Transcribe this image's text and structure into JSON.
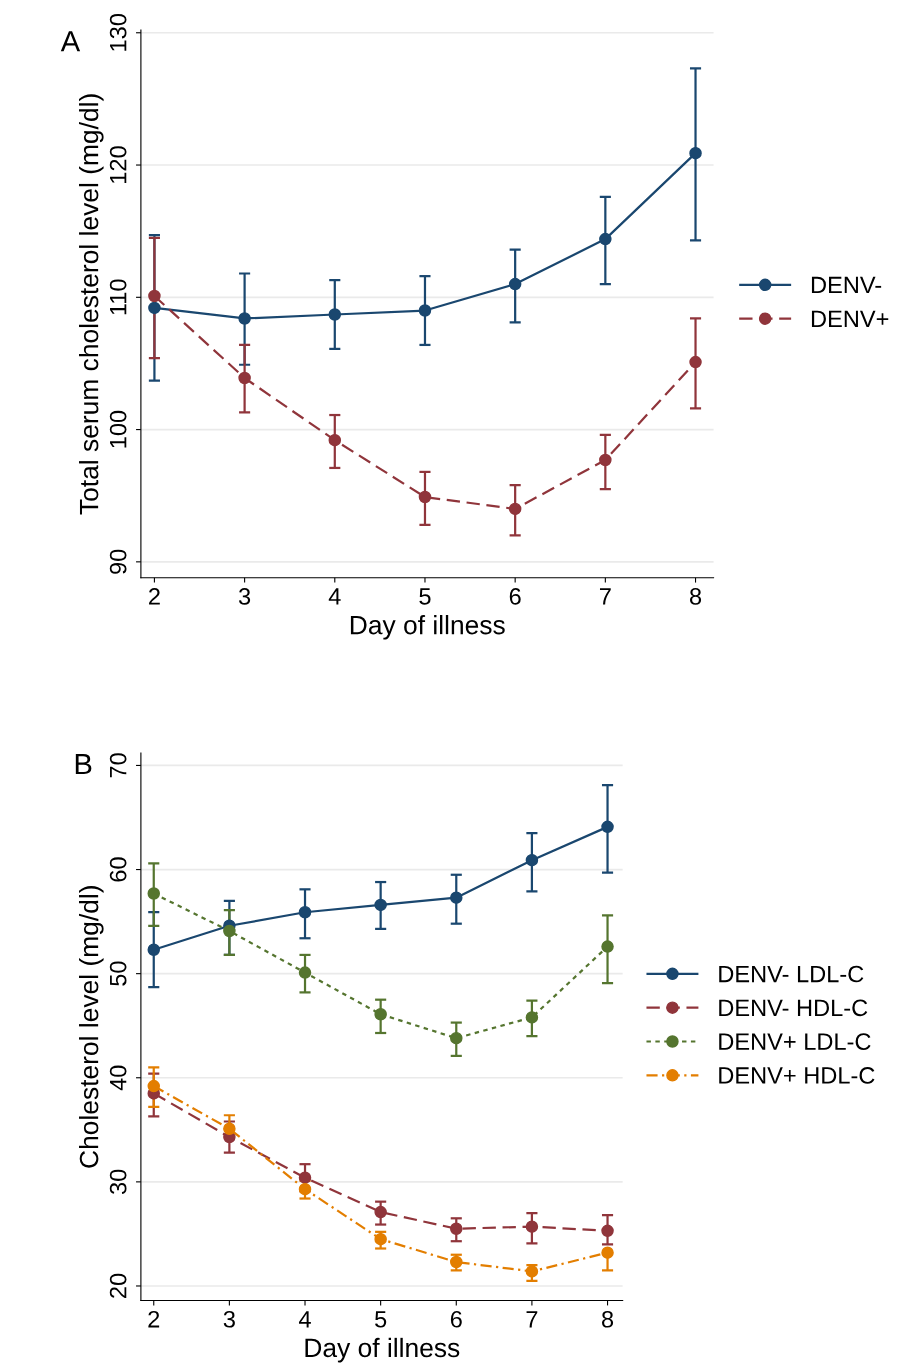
{
  "chart_data": [
    {
      "type": "line",
      "title": "A",
      "xlabel": "Day of illness",
      "ylabel": "Total serum cholesterol level (mg/dl)",
      "x": [
        2,
        3,
        4,
        5,
        6,
        7,
        8
      ],
      "xlim": [
        1.85,
        8.2
      ],
      "xticks": [
        2,
        3,
        4,
        5,
        6,
        7,
        8
      ],
      "ylim": [
        88.8,
        130.2
      ],
      "yticks": [
        90,
        100,
        110,
        120,
        130
      ],
      "grid": "y",
      "legend": "right",
      "marker": "circle",
      "series": [
        {
          "name": "DENV-",
          "color": "#1a476f",
          "line_style": "solid",
          "values": [
            109.2,
            108.4,
            108.7,
            109.0,
            111.0,
            114.4,
            120.9
          ],
          "errors": [
            [
              103.7,
              114.7
            ],
            [
              104.9,
              111.8
            ],
            [
              106.1,
              111.3
            ],
            [
              106.4,
              111.6
            ],
            [
              108.1,
              113.6
            ],
            [
              111.0,
              117.6
            ],
            [
              114.3,
              127.3
            ]
          ]
        },
        {
          "name": "DENV+",
          "color": "#90353b",
          "line_style": "dashed",
          "values": [
            110.1,
            103.9,
            99.2,
            94.9,
            94.0,
            97.7,
            105.1
          ],
          "errors": [
            [
              105.4,
              114.5
            ],
            [
              101.3,
              106.4
            ],
            [
              97.1,
              101.1
            ],
            [
              92.8,
              96.8
            ],
            [
              92.0,
              95.8
            ],
            [
              95.5,
              99.6
            ],
            [
              101.6,
              108.4
            ]
          ]
        }
      ]
    },
    {
      "type": "line",
      "title": "B",
      "xlabel": "Day of illness",
      "ylabel": "Cholesterol level (mg/dl)",
      "x": [
        2,
        3,
        4,
        5,
        6,
        7,
        8
      ],
      "xlim": [
        1.83,
        8.2
      ],
      "xticks": [
        2,
        3,
        4,
        5,
        6,
        7,
        8
      ],
      "ylim": [
        18.6,
        71.2
      ],
      "yticks": [
        20,
        30,
        40,
        50,
        60,
        70
      ],
      "grid": "y",
      "legend": "right",
      "marker": "circle",
      "series": [
        {
          "name": "DENV- LDL-C",
          "color": "#1a476f",
          "line_style": "solid",
          "values": [
            52.3,
            54.6,
            55.9,
            56.6,
            57.3,
            60.9,
            64.1
          ],
          "errors": [
            [
              48.7,
              55.9
            ],
            [
              51.8,
              57.0
            ],
            [
              53.4,
              58.1
            ],
            [
              54.3,
              58.8
            ],
            [
              54.8,
              59.5
            ],
            [
              57.9,
              63.5
            ],
            [
              59.7,
              68.1
            ]
          ]
        },
        {
          "name": "DENV- HDL-C",
          "color": "#90353b",
          "line_style": "dashed",
          "values": [
            38.5,
            34.3,
            30.4,
            27.1,
            25.5,
            25.7,
            25.3
          ],
          "errors": [
            [
              36.3,
              40.4
            ],
            [
              32.8,
              35.8
            ],
            [
              29.1,
              31.7
            ],
            [
              25.9,
              28.1
            ],
            [
              24.3,
              26.5
            ],
            [
              24.1,
              27.0
            ],
            [
              24.0,
              26.8
            ]
          ]
        },
        {
          "name": "DENV+ LDL-C",
          "color": "#55752f",
          "line_style": "dotted",
          "values": [
            57.7,
            54.1,
            50.1,
            46.1,
            43.8,
            45.8,
            52.6
          ],
          "errors": [
            [
              54.6,
              60.6
            ],
            [
              51.8,
              56.1
            ],
            [
              48.2,
              51.8
            ],
            [
              44.3,
              47.5
            ],
            [
              42.1,
              45.3
            ],
            [
              44.0,
              47.4
            ],
            [
              49.1,
              55.6
            ]
          ]
        },
        {
          "name": "DENV+ HDL-C",
          "color": "#e37e00",
          "line_style": "dashdot",
          "values": [
            39.2,
            35.1,
            29.3,
            24.5,
            22.3,
            21.4,
            23.2
          ],
          "errors": [
            [
              37.2,
              41.0
            ],
            [
              35.1,
              36.4
            ],
            [
              28.4,
              30.1
            ],
            [
              23.6,
              25.2
            ],
            [
              21.5,
              23.0
            ],
            [
              20.5,
              22.0
            ],
            [
              21.5,
              23.2
            ]
          ]
        }
      ]
    }
  ]
}
